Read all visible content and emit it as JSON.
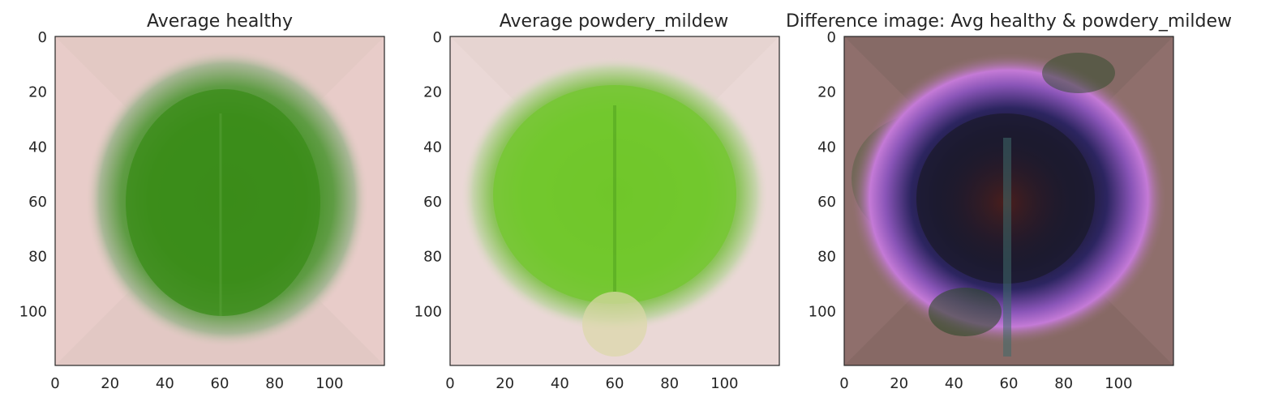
{
  "chart_data": [
    {
      "type": "heatmap",
      "title": "Average healthy",
      "xlabel": "",
      "ylabel": "",
      "image_size": [
        120,
        120
      ],
      "xlim": [
        0,
        120
      ],
      "ylim": [
        120,
        0
      ],
      "x_ticks": [
        "0",
        "20",
        "40",
        "60",
        "80",
        "100"
      ],
      "y_ticks": [
        "0",
        "20",
        "40",
        "60",
        "80",
        "100"
      ],
      "grid": false,
      "colors": {
        "background": "#e8ccc9",
        "leaf": "#3f8f1e",
        "leaf_edge": "#8fae78"
      }
    },
    {
      "type": "heatmap",
      "title": "Average powdery_mildew",
      "xlabel": "",
      "ylabel": "",
      "image_size": [
        120,
        120
      ],
      "xlim": [
        0,
        120
      ],
      "ylim": [
        120,
        0
      ],
      "x_ticks": [
        "0",
        "20",
        "40",
        "60",
        "80",
        "100"
      ],
      "y_ticks": [
        "0",
        "20",
        "40",
        "60",
        "80",
        "100"
      ],
      "grid": false,
      "colors": {
        "background": "#ead8d6",
        "leaf": "#72c72c",
        "leaf_edge": "#9bc86a"
      }
    },
    {
      "type": "heatmap",
      "title": "Difference image: Avg healthy & powdery_mildew",
      "xlabel": "",
      "ylabel": "",
      "image_size": [
        120,
        120
      ],
      "xlim": [
        0,
        120
      ],
      "ylim": [
        120,
        0
      ],
      "x_ticks": [
        "0",
        "20",
        "40",
        "60",
        "80",
        "100"
      ],
      "y_ticks": [
        "0",
        "20",
        "40",
        "60",
        "80",
        "100"
      ],
      "grid": false,
      "colors": {
        "background": "#8f6f6c",
        "ring": "#b56dcc",
        "inner": "#241a3d",
        "core": "#3a1a1e",
        "vein": "#3f6a6a"
      }
    }
  ]
}
